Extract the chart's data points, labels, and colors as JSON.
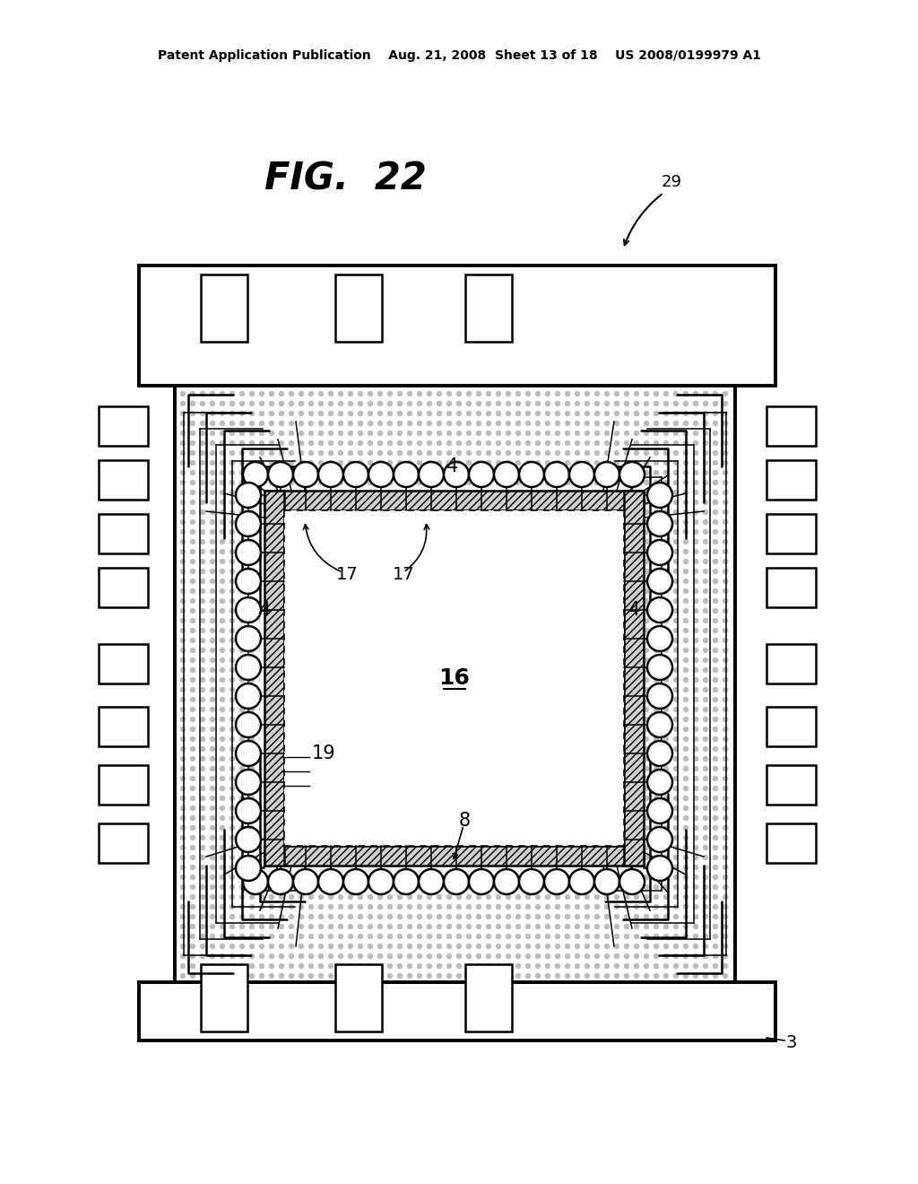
{
  "bg_color": "#ffffff",
  "lc": "#000000",
  "header": "Patent Application Publication    Aug. 21, 2008  Sheet 13 of 18    US 2008/0199979 A1",
  "fig_title": "FIG.  22",
  "label_29": "29",
  "label_3": "3",
  "label_4": "4",
  "label_16": "16",
  "label_17": "17",
  "label_19": "19",
  "label_8": "8",
  "pkg_l": 155,
  "pkg_r": 860,
  "pkg_t": 295,
  "pkg_b": 1160,
  "inner_l": 195,
  "inner_r": 820,
  "inner_t": 430,
  "inner_b": 1100,
  "frame_l": 292,
  "frame_r": 718,
  "frame_t": 544,
  "frame_b": 968,
  "die_l": 318,
  "die_r": 692,
  "die_t": 570,
  "die_b": 942
}
